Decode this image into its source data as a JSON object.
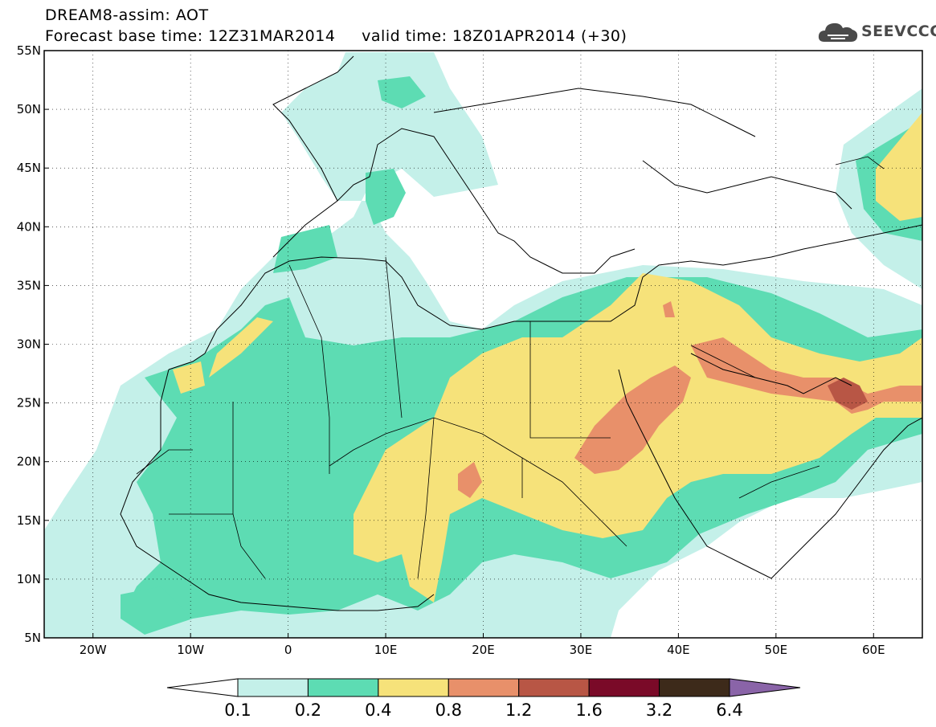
{
  "header": {
    "line1": "DREAM8-assim: AOT",
    "line2": "Forecast base time: 12Z31MAR2014     valid time: 18Z01APR2014 (+30)"
  },
  "logo": {
    "text": "SEEVCCC",
    "icon": "cloud-icon",
    "color": "#4a4a4a"
  },
  "map": {
    "variable": "AOT",
    "region": "North Africa / Middle East / Europe",
    "lon_range": [
      -25,
      65
    ],
    "lat_range": [
      5,
      55
    ],
    "lat_ticks": [
      "5N",
      "10N",
      "15N",
      "20N",
      "25N",
      "30N",
      "35N",
      "40N",
      "45N",
      "50N",
      "55N"
    ],
    "lon_ticks": [
      "20W",
      "10W",
      "0",
      "10E",
      "20E",
      "30E",
      "40E",
      "50E",
      "60E"
    ]
  },
  "colorbar": {
    "levels": [
      "0.1",
      "0.2",
      "0.4",
      "0.8",
      "1.2",
      "1.6",
      "3.2",
      "6.4"
    ],
    "colors": [
      "#ffffff",
      "#c4f0e9",
      "#5ddcb3",
      "#f6e27a",
      "#e8906a",
      "#b85645",
      "#7a0a28",
      "#3d2a1a",
      "#8a64a8"
    ]
  }
}
